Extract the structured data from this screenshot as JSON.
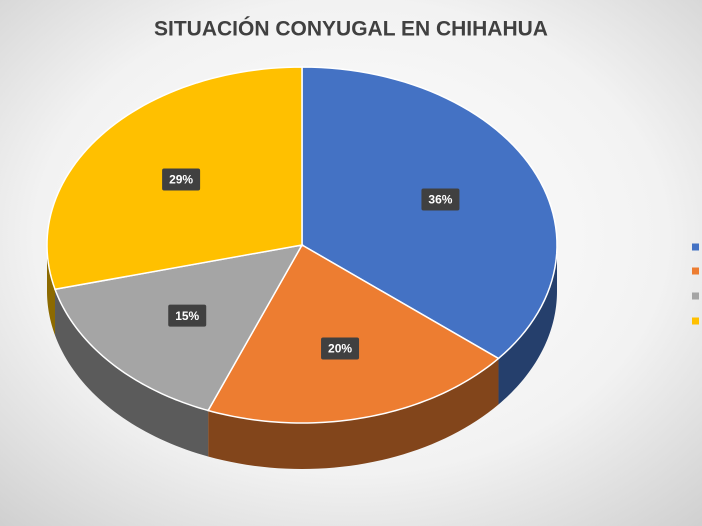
{
  "chart_data": {
    "type": "pie",
    "title": "SITUACIÓN CONYUGAL EN CHIHAHUA",
    "categories": [
      null,
      null,
      null,
      null
    ],
    "values": [
      36,
      20,
      15,
      29
    ],
    "value_labels": [
      "36%",
      "20%",
      "15%",
      "29%"
    ],
    "colors": [
      "#4472c4",
      "#ed7d31",
      "#a5a5a5",
      "#ffc000"
    ]
  }
}
